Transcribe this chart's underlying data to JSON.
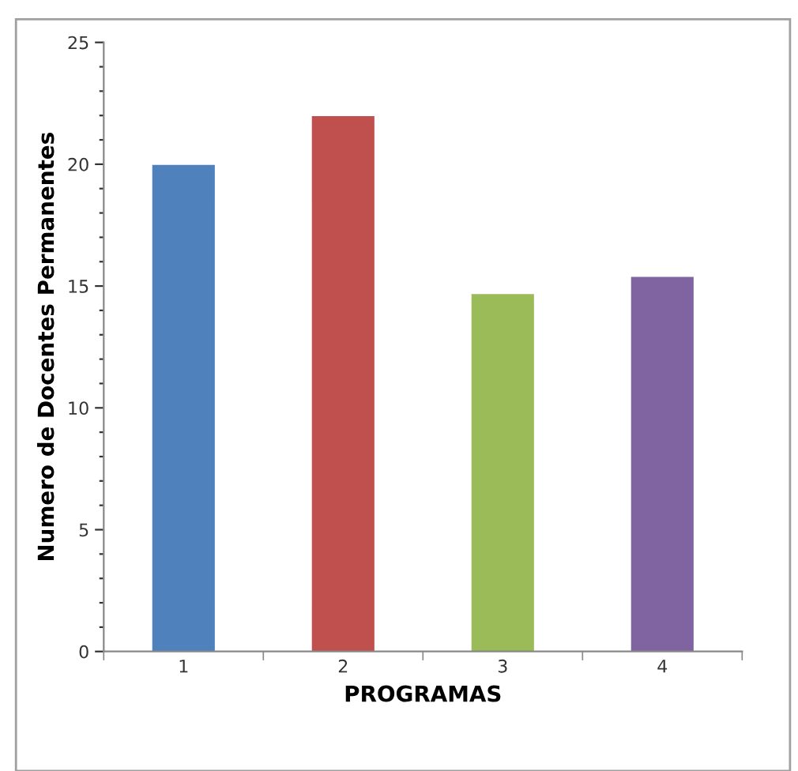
{
  "chart_data": {
    "type": "bar",
    "xlabel": "PROGRAMAS",
    "ylabel": "Numero de Docentes Permanentes",
    "categories": [
      "1",
      "2",
      "3",
      "4"
    ],
    "values": [
      20,
      22,
      14.7,
      15.4
    ],
    "colors": [
      "#4f81bd",
      "#c0504d",
      "#9bbb59",
      "#8064a2"
    ],
    "ylim": [
      0,
      25
    ],
    "yticks": [
      0,
      {
        "value": 1,
        "label": null
      },
      {
        "value": 2,
        "label": null
      },
      {
        "value": 3,
        "label": null
      },
      {
        "value": 4,
        "label": null
      },
      5,
      {
        "value": 6,
        "label": null
      },
      {
        "value": 7,
        "label": null
      },
      {
        "value": 8,
        "label": null
      },
      {
        "value": 9,
        "label": null
      },
      10,
      {
        "value": 11,
        "label": null
      },
      {
        "value": 12,
        "label": null
      },
      {
        "value": 13,
        "label": null
      },
      {
        "value": 14,
        "label": null
      },
      15,
      {
        "value": 16,
        "label": null
      },
      {
        "value": 17,
        "label": null
      },
      {
        "value": 18,
        "label": null
      },
      {
        "value": 19,
        "label": null
      },
      20,
      {
        "value": 21,
        "label": null
      },
      {
        "value": 22,
        "label": null
      },
      {
        "value": 23,
        "label": null
      },
      {
        "value": 24,
        "label": null
      },
      25
    ],
    "grid": false,
    "legend": false
  }
}
